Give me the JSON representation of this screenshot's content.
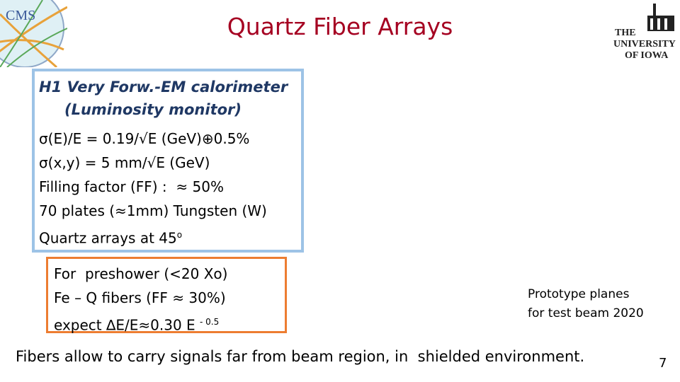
{
  "logos": {
    "cms": "CMS",
    "iowa": [
      "THE",
      "UNIVERSITY",
      "OF IOWA"
    ]
  },
  "header": {
    "title": "Quartz Fiber Arrays"
  },
  "box1": {
    "heading": [
      "H1 Very Forw.-EM calorimeter",
      "(Luminosity monitor)"
    ],
    "lines": [
      "σ(E)/E = 0.19/√E (GeV)⊕0.5%",
      "σ(x,y) = 5 mm/√E (GeV)",
      "Filling factor (FF) :  ≈ 50%",
      "70 plates (≈1mm) Tungsten (W)"
    ],
    "last": {
      "text": "Quartz arrays at 45",
      "sup": "o"
    }
  },
  "box2": {
    "lines": [
      "For  preshower (<20 Xo)",
      "Fe – Q fibers (FF ≈ 30%)"
    ],
    "last": {
      "text": "expect ∆E/E≈0.30 E",
      "sup": "- 0.5"
    }
  },
  "caption": [
    "Prototype planes",
    "for test beam 2020"
  ],
  "footer": "Fibers allow to carry signals far from beam region, in  shielded environment.",
  "page_number": "7"
}
